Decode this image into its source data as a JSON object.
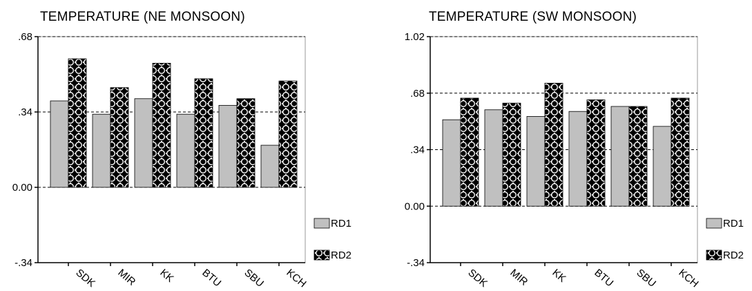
{
  "chart_data": [
    {
      "type": "bar",
      "title": "TEMPERATURE (NE MONSOON)",
      "categories": [
        "SDK",
        "MIR",
        "KK",
        "BTU",
        "SBU",
        "KCH"
      ],
      "series": [
        {
          "name": "RD1",
          "values": [
            0.39,
            0.33,
            0.4,
            0.33,
            0.37,
            0.19
          ]
        },
        {
          "name": "RD2",
          "values": [
            0.58,
            0.45,
            0.56,
            0.49,
            0.4,
            0.48
          ]
        }
      ],
      "ylim": [
        -0.34,
        0.68
      ],
      "yticks": [
        -0.34,
        0.0,
        0.34,
        0.68
      ],
      "yticklabels": [
        "-.34",
        "0.00",
        ".34",
        ".68"
      ],
      "ref_lines": [
        0.0,
        0.34,
        0.68
      ],
      "legend": "bottom-right",
      "grid": false,
      "colors": {
        "RD1": "#c0c0c0",
        "RD2": "#000000"
      },
      "xlabel": "",
      "ylabel": ""
    },
    {
      "type": "bar",
      "title": "TEMPERATURE (SW MONSOON)",
      "categories": [
        "SDK",
        "MIR",
        "KK",
        "BTU",
        "SBU",
        "KCH"
      ],
      "series": [
        {
          "name": "RD1",
          "values": [
            0.52,
            0.58,
            0.54,
            0.57,
            0.6,
            0.48
          ]
        },
        {
          "name": "RD2",
          "values": [
            0.65,
            0.62,
            0.74,
            0.64,
            0.6,
            0.65
          ]
        }
      ],
      "ylim": [
        -0.34,
        1.02
      ],
      "yticks": [
        -0.34,
        0.0,
        0.34,
        0.68,
        1.02
      ],
      "yticklabels": [
        "-.34",
        "0.00",
        ".34",
        ".68",
        "1.02"
      ],
      "ref_lines": [
        0.0,
        0.34,
        0.68,
        1.02
      ],
      "legend": "bottom-right",
      "grid": false,
      "colors": {
        "RD1": "#c0c0c0",
        "RD2": "#000000"
      },
      "xlabel": "",
      "ylabel": ""
    }
  ]
}
